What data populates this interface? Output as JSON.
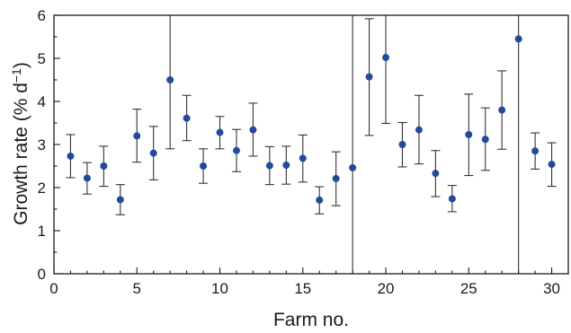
{
  "chart_data": {
    "type": "scatter",
    "xlabel": "Farm no.",
    "ylabel": "Growth rate (% d",
    "ylabel_superscript": "−1",
    "ylabel_close": ")",
    "xlim": [
      0,
      31
    ],
    "ylim": [
      0,
      6
    ],
    "x_ticks": [
      0,
      5,
      10,
      15,
      20,
      25,
      30
    ],
    "y_ticks": [
      0,
      1,
      2,
      3,
      4,
      5,
      6
    ],
    "grid": false,
    "error_bars": true,
    "colors": {
      "point": "#234a9a",
      "error_bar": "#333333",
      "axis": "#1a1a1a"
    },
    "points": [
      {
        "x": 1,
        "y": 2.73,
        "low": 2.23,
        "high": 3.23
      },
      {
        "x": 2,
        "y": 2.22,
        "low": 1.85,
        "high": 2.58
      },
      {
        "x": 3,
        "y": 2.5,
        "low": 2.03,
        "high": 2.96
      },
      {
        "x": 4,
        "y": 1.72,
        "low": 1.37,
        "high": 2.07
      },
      {
        "x": 5,
        "y": 3.2,
        "low": 2.59,
        "high": 3.82
      },
      {
        "x": 6,
        "y": 2.8,
        "low": 2.18,
        "high": 3.42
      },
      {
        "x": 7,
        "y": 4.5,
        "low": 2.9,
        "high": 6.0
      },
      {
        "x": 8,
        "y": 3.61,
        "low": 3.09,
        "high": 4.14
      },
      {
        "x": 9,
        "y": 2.5,
        "low": 2.1,
        "high": 2.9
      },
      {
        "x": 10,
        "y": 3.28,
        "low": 2.9,
        "high": 3.65
      },
      {
        "x": 11,
        "y": 2.86,
        "low": 2.37,
        "high": 3.35
      },
      {
        "x": 12,
        "y": 3.34,
        "low": 2.73,
        "high": 3.96
      },
      {
        "x": 13,
        "y": 2.51,
        "low": 2.07,
        "high": 2.95
      },
      {
        "x": 14,
        "y": 2.52,
        "low": 2.08,
        "high": 2.96
      },
      {
        "x": 15,
        "y": 2.68,
        "low": 2.13,
        "high": 3.22
      },
      {
        "x": 16,
        "y": 1.71,
        "low": 1.39,
        "high": 2.02
      },
      {
        "x": 17,
        "y": 2.21,
        "low": 1.58,
        "high": 2.83
      },
      {
        "x": 18,
        "y": 2.46,
        "low": 0.0,
        "high": 6.0
      },
      {
        "x": 19,
        "y": 4.57,
        "low": 3.21,
        "high": 5.92
      },
      {
        "x": 20,
        "y": 5.02,
        "low": 3.49,
        "high": 6.0
      },
      {
        "x": 21,
        "y": 3.0,
        "low": 2.48,
        "high": 3.51
      },
      {
        "x": 22,
        "y": 3.34,
        "low": 2.55,
        "high": 4.14
      },
      {
        "x": 23,
        "y": 2.33,
        "low": 1.79,
        "high": 2.86
      },
      {
        "x": 24,
        "y": 1.74,
        "low": 1.44,
        "high": 2.05
      },
      {
        "x": 25,
        "y": 3.23,
        "low": 2.28,
        "high": 4.17
      },
      {
        "x": 26,
        "y": 3.12,
        "low": 2.4,
        "high": 3.85
      },
      {
        "x": 27,
        "y": 3.8,
        "low": 2.89,
        "high": 4.71
      },
      {
        "x": 28,
        "y": 5.45,
        "low": 0.0,
        "high": 6.0
      },
      {
        "x": 29,
        "y": 2.85,
        "low": 2.43,
        "high": 3.27
      },
      {
        "x": 30,
        "y": 2.54,
        "low": 2.03,
        "high": 3.04
      }
    ]
  }
}
